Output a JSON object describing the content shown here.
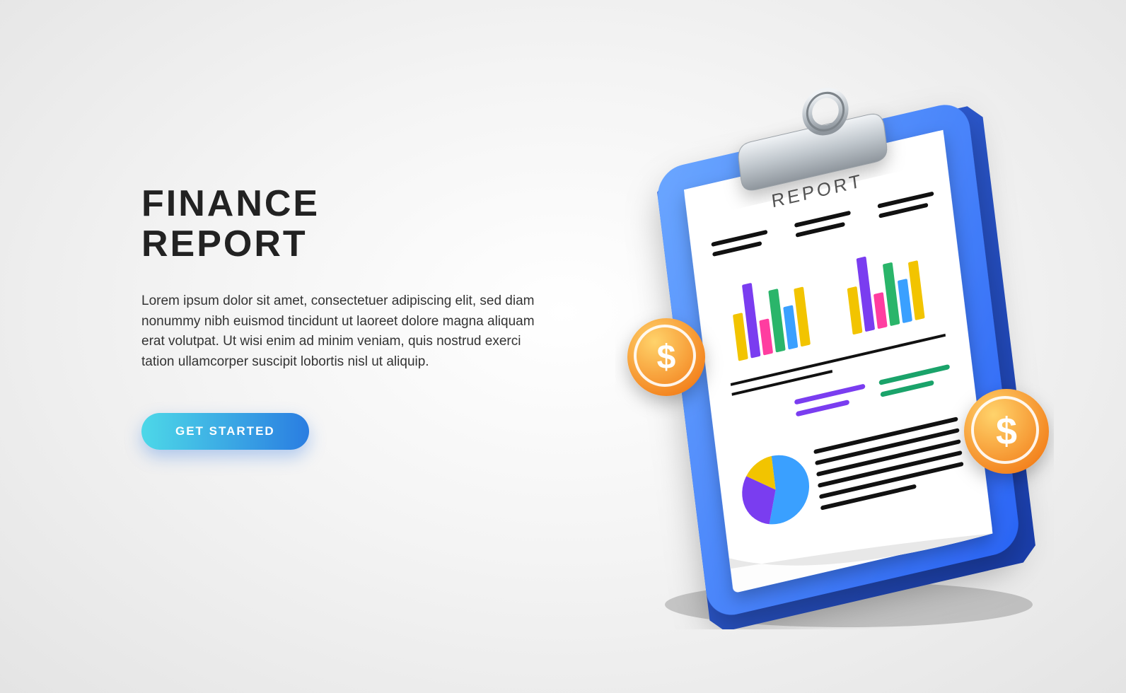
{
  "hero": {
    "title_line1": "FINANCE",
    "title_line2": "REPORT",
    "body": "Lorem ipsum dolor sit amet, consectetuer adipiscing elit, sed diam nonummy nibh euismod tincidunt ut laoreet dolore magna aliquam erat volutpat. Ut wisi enim ad minim veniam, quis nostrud exerci tation ullamcorper suscipit lobortis nisl ut aliquip."
  },
  "cta": {
    "label": "GET STARTED"
  },
  "clipboard": {
    "title": "REPORT",
    "board_fill_top": "#6aa6ff",
    "board_fill_bottom": "#2a64f5",
    "paper_fill": "#ffffff",
    "clip_light": "#e9edf1",
    "clip_dark": "#8f979f",
    "text_line_color": "#111111",
    "bar_chart": {
      "group1": {
        "values": [
          60,
          95,
          45,
          80,
          55,
          75
        ],
        "colors": [
          "#f2c400",
          "#7a3df0",
          "#ff3da0",
          "#2ab56a",
          "#3aa0ff",
          "#f2c400"
        ]
      },
      "group2": {
        "values": [
          60,
          95,
          45,
          80,
          55,
          75
        ],
        "colors": [
          "#f2c400",
          "#7a3df0",
          "#ff3da0",
          "#2ab56a",
          "#3aa0ff",
          "#f2c400"
        ]
      }
    },
    "mid_lines": {
      "left_color": "#7a3df0",
      "right_color": "#1aa36a"
    },
    "pie": {
      "slices": [
        {
          "color": "#3aa0ff",
          "pct": 55
        },
        {
          "color": "#7a3df0",
          "pct": 30
        },
        {
          "color": "#f2c400",
          "pct": 15
        }
      ]
    },
    "coin": {
      "outer_light": "#ffd36b",
      "outer_dark": "#f27c18",
      "ring": "#ffffff",
      "symbol": "$",
      "symbol_color": "#ffffff"
    }
  },
  "typography": {
    "title_fontsize": 52,
    "body_fontsize": 19,
    "cta_fontsize": 17,
    "report_title_fontsize": 26
  },
  "palette": {
    "background_center": "#ffffff",
    "background_edge": "#e4e4e4",
    "title_color": "#222222",
    "body_color": "#333333",
    "cta_grad_start": "#4dd8e8",
    "cta_grad_end": "#2a7de1"
  }
}
